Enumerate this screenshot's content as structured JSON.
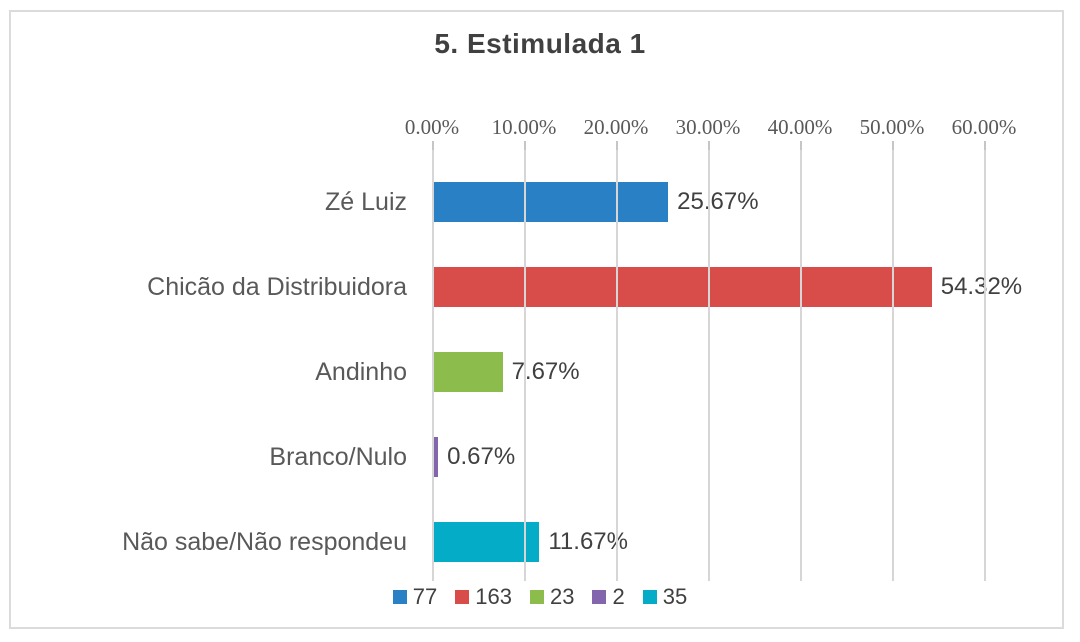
{
  "chart_data": {
    "type": "bar",
    "orientation": "horizontal",
    "title": "5. Estimulada 1",
    "categories": [
      "Zé Luiz",
      "Chicão da Distribuidora",
      "Andinho",
      "Branco/Nulo",
      "Não sabe/Não respondeu"
    ],
    "values": [
      25.67,
      54.32,
      7.67,
      0.67,
      11.67
    ],
    "bar_labels": [
      "25.67%",
      "54.32%",
      "7.67%",
      "0.67%",
      "11.67%"
    ],
    "counts": [
      77,
      163,
      23,
      2,
      35
    ],
    "bar_colors": [
      "#2980C4",
      "#D84C4A",
      "#8CBD4C",
      "#8265AC",
      "#05ACC8"
    ],
    "x_ticks": [
      "0.00%",
      "10.00%",
      "20.00%",
      "30.00%",
      "40.00%",
      "50.00%",
      "60.00%"
    ],
    "xlim": [
      0,
      60
    ],
    "grid": true,
    "value_axis_position": "top",
    "legend_position": "bottom",
    "legend": [
      {
        "label": "77",
        "color": "#2980C4"
      },
      {
        "label": "163",
        "color": "#D84C4A"
      },
      {
        "label": "23",
        "color": "#8CBD4C"
      },
      {
        "label": "2",
        "color": "#8265AC"
      },
      {
        "label": "35",
        "color": "#05ACC8"
      }
    ],
    "colors": {
      "title_text": "#404040",
      "category_text": "#595959",
      "tick_text": "#595959",
      "data_label_text": "#404040",
      "gridline": "#D6D6D6",
      "border": "#DBDBDB",
      "background": "#FFFFFF"
    }
  }
}
